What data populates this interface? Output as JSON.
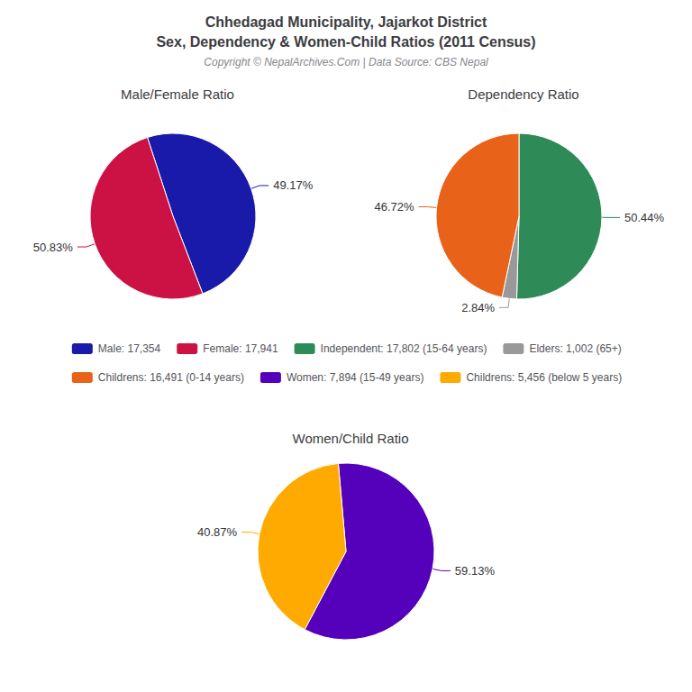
{
  "title": "Chhedagad Municipality, Jajarkot District\nSex, Dependency & Women-Child Ratios (2011 Census)",
  "subtitle": "Copyright © NepalArchives.Com | Data Source: CBS Nepal",
  "chart_data": [
    {
      "type": "pie",
      "title": "Male/Female Ratio",
      "categories": [
        "Male: 17,354",
        "Female: 17,941"
      ],
      "values": [
        49.17,
        50.83
      ],
      "value_labels": [
        "49.17%",
        "50.83%"
      ],
      "colors": [
        "#1a1aaa",
        "#cc1144"
      ],
      "data_labels": true,
      "legend": "center"
    },
    {
      "type": "pie",
      "title": "Dependency Ratio",
      "categories": [
        "Independent: 17,802 (15-64 years)",
        "Elders: 1,002 (65+)",
        "Childrens: 16,491 (0-14 years)"
      ],
      "values": [
        50.44,
        2.84,
        46.72
      ],
      "value_labels": [
        "50.44%",
        "2.84%",
        "46.72%"
      ],
      "colors": [
        "#2e8b57",
        "#999999",
        "#e8621a"
      ],
      "data_labels": true,
      "legend": "center"
    },
    {
      "type": "pie",
      "title": "Women/Child Ratio",
      "categories": [
        "Women: 7,894 (15-49 years)",
        "Childrens: 5,456 (below 5 years)"
      ],
      "values": [
        59.13,
        40.87
      ],
      "value_labels": [
        "59.13%",
        "40.87%"
      ],
      "colors": [
        "#5500bb",
        "#ffaa00"
      ],
      "data_labels": true,
      "legend": "center"
    }
  ]
}
